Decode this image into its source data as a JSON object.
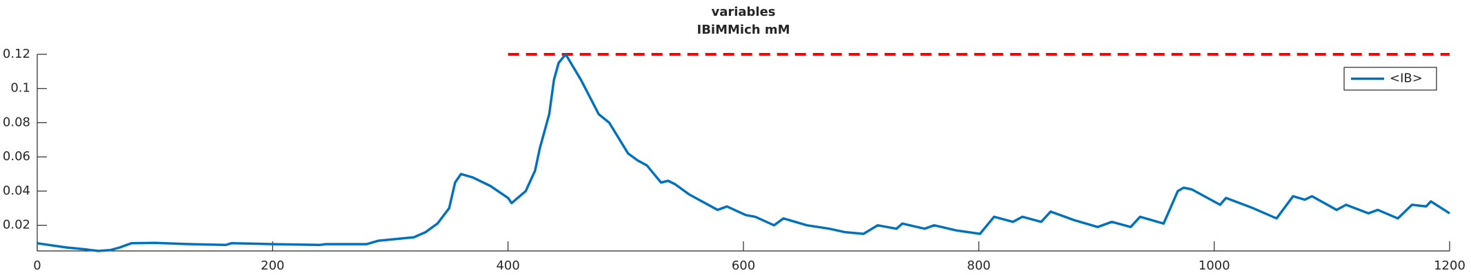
{
  "chart_data": {
    "type": "line",
    "title": [
      "variables",
      "IBiMMich mM"
    ],
    "x": [
      0,
      10,
      25,
      40,
      52,
      62,
      70,
      80,
      100,
      130,
      160,
      165,
      200,
      240,
      245,
      280,
      290,
      320,
      330,
      340,
      350,
      355,
      360,
      370,
      385,
      400,
      403,
      415,
      423,
      427,
      435,
      439,
      443,
      449,
      462,
      477,
      486,
      502,
      510,
      518,
      530,
      536,
      542,
      554,
      578,
      586,
      602,
      610,
      626,
      634,
      654,
      673,
      686,
      702,
      714,
      730,
      735,
      754,
      762,
      781,
      801,
      813,
      829,
      837,
      853,
      861,
      881,
      901,
      913,
      929,
      937,
      957,
      969,
      974,
      981,
      1005,
      1010,
      1033,
      1053,
      1067,
      1077,
      1083,
      1104,
      1112,
      1131,
      1139,
      1156,
      1168,
      1180,
      1184,
      1200
    ],
    "series": [
      {
        "name": "<IB>",
        "color": "#0072bd",
        "values": [
          0.0095,
          0.0085,
          0.007,
          0.006,
          0.005,
          0.0055,
          0.007,
          0.0095,
          0.0097,
          0.009,
          0.0085,
          0.0095,
          0.009,
          0.0085,
          0.009,
          0.009,
          0.011,
          0.013,
          0.016,
          0.021,
          0.03,
          0.045,
          0.05,
          0.048,
          0.043,
          0.036,
          0.033,
          0.04,
          0.052,
          0.065,
          0.085,
          0.105,
          0.115,
          0.12,
          0.105,
          0.085,
          0.08,
          0.062,
          0.058,
          0.055,
          0.045,
          0.046,
          0.044,
          0.038,
          0.029,
          0.031,
          0.026,
          0.025,
          0.02,
          0.024,
          0.02,
          0.018,
          0.016,
          0.015,
          0.02,
          0.018,
          0.021,
          0.018,
          0.02,
          0.017,
          0.015,
          0.025,
          0.022,
          0.025,
          0.022,
          0.028,
          0.023,
          0.019,
          0.022,
          0.019,
          0.025,
          0.021,
          0.04,
          0.042,
          0.041,
          0.032,
          0.036,
          0.03,
          0.024,
          0.037,
          0.035,
          0.037,
          0.029,
          0.032,
          0.027,
          0.029,
          0.024,
          0.032,
          0.031,
          0.034,
          0.027
        ]
      }
    ],
    "hlines": [
      {
        "x": [
          400,
          1200
        ],
        "y": 0.12,
        "color": "#ff0000",
        "style": "dashed"
      }
    ],
    "xlim": [
      0,
      1200
    ],
    "xticks": [
      0,
      200,
      400,
      600,
      800,
      1000,
      1200
    ],
    "ylim": [
      0.005,
      0.12
    ],
    "yticks": [
      0.02,
      0.04,
      0.06,
      0.08,
      0.1,
      0.12
    ],
    "legend": "upper right"
  }
}
